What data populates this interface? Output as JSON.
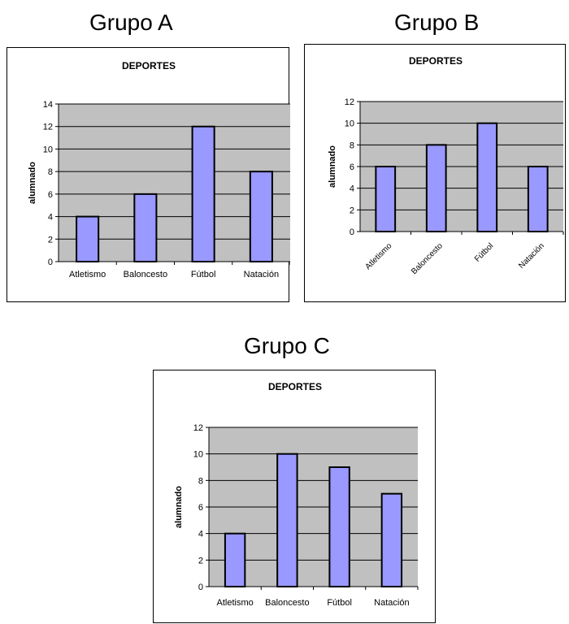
{
  "groups": [
    "Grupo A",
    "Grupo B",
    "Grupo C"
  ],
  "colors": {
    "plot_bg": "#c0c0c0",
    "bar": "#9999ff",
    "bar_edge": "#000000",
    "gridline": "#000000",
    "frame": "#000000"
  },
  "chart_data": [
    {
      "type": "bar",
      "title": "DEPORTES",
      "xlabel": "",
      "ylabel": "alumnado",
      "categories": [
        "Atletismo",
        "Baloncesto",
        "Fútbol",
        "Natación"
      ],
      "values": [
        4,
        6,
        12,
        8
      ],
      "ylim": [
        0,
        14
      ],
      "yticks": [
        0,
        2,
        4,
        6,
        8,
        10,
        12,
        14
      ],
      "grid": true,
      "legend": "none"
    },
    {
      "type": "bar",
      "title": "DEPORTES",
      "xlabel": "",
      "ylabel": "alumnado",
      "categories": [
        "Atletismo",
        "Baloncesto",
        "Fútbol",
        "Natación"
      ],
      "values": [
        6,
        8,
        10,
        6
      ],
      "ylim": [
        0,
        12
      ],
      "yticks": [
        0,
        2,
        4,
        6,
        8,
        10,
        12
      ],
      "grid": true,
      "legend": "none"
    },
    {
      "type": "bar",
      "title": "DEPORTES",
      "xlabel": "",
      "ylabel": "alumnado",
      "categories": [
        "Atletismo",
        "Baloncesto",
        "Fútbol",
        "Natación"
      ],
      "values": [
        4,
        10,
        9,
        7
      ],
      "ylim": [
        0,
        12
      ],
      "yticks": [
        0,
        2,
        4,
        6,
        8,
        10,
        12
      ],
      "grid": true,
      "legend": "none"
    }
  ]
}
